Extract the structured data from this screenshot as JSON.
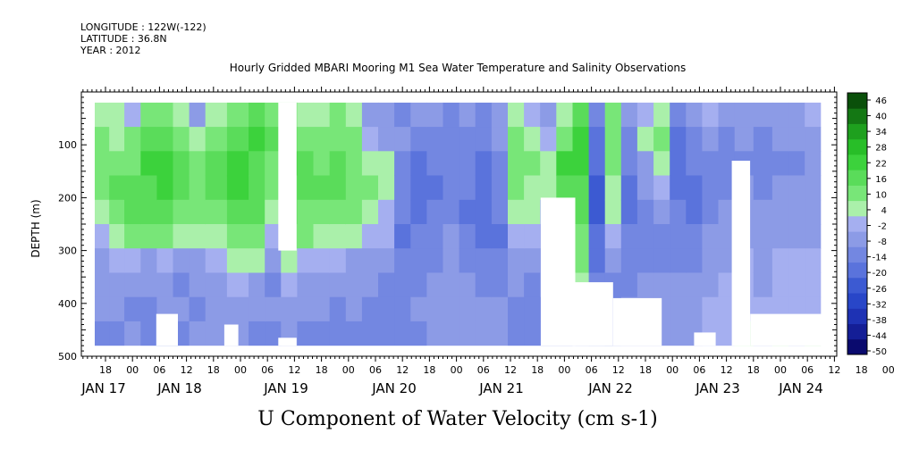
{
  "header": {
    "longitude": "LONGITUDE : 122W(-122)",
    "latitude": "LATITUDE : 36.8N",
    "year": "YEAR : 2012"
  },
  "chart_data": {
    "type": "heatmap",
    "title": "Hourly Gridded MBARI Mooring M1 Sea Water Temperature and Salinity Observations",
    "xlabel": "U Component of Water Velocity (cm s-1)",
    "ylabel": "DEPTH (m)",
    "ylim": [
      500,
      0
    ],
    "y_ticks": [
      100,
      200,
      300,
      400,
      500
    ],
    "x_hour_ticks": [
      "18",
      "00",
      "06",
      "12",
      "18",
      "00",
      "06",
      "12",
      "18",
      "00",
      "06",
      "12",
      "18",
      "00",
      "06",
      "12",
      "18",
      "00",
      "06",
      "12",
      "18",
      "00",
      "06",
      "12",
      "18",
      "00",
      "06",
      "12",
      "18",
      "00",
      "06",
      "12"
    ],
    "x_day_labels": [
      "JAN 17",
      "JAN 18",
      "JAN 19",
      "JAN 20",
      "JAN 21",
      "JAN 22",
      "JAN 23",
      "JAN 24"
    ],
    "colorbar": {
      "levels": [
        -50,
        -44,
        -38,
        -32,
        -26,
        -20,
        -14,
        -8,
        -2,
        4,
        10,
        16,
        22,
        28,
        34,
        40,
        46
      ],
      "tick_labels": [
        "46",
        "40",
        "34",
        "28",
        "22",
        "16",
        "10",
        "4",
        "-2",
        "-8",
        "-14",
        "-20",
        "-26",
        "-32",
        "-38",
        "-44",
        "-50"
      ],
      "colors_low_to_high": [
        "#0a0a6e",
        "#141e96",
        "#1e32b4",
        "#2846c8",
        "#3c5ad2",
        "#5a73dc",
        "#7387e1",
        "#8c9be6",
        "#a5aff0",
        "#aaf0aa",
        "#78e678",
        "#5adc5a",
        "#3cd23c",
        "#28be28",
        "#1ea01e",
        "#147814",
        "#0a500a"
      ]
    },
    "depth_top": 20,
    "depth_bottom": 480,
    "columns": [
      {
        "day": 0.72,
        "top": 20,
        "bottom": 480,
        "u": [
          6,
          10,
          14,
          12,
          6,
          0,
          -4,
          -8,
          -6,
          -10
        ]
      },
      {
        "day": 0.85,
        "top": 20,
        "bottom": 480,
        "u": [
          4,
          8,
          12,
          16,
          14,
          8,
          2,
          -6,
          -8,
          -12
        ]
      },
      {
        "day": 1.0,
        "top": 20,
        "bottom": 480,
        "u": [
          2,
          10,
          14,
          18,
          16,
          10,
          -2,
          -8,
          -10,
          -8
        ]
      },
      {
        "day": 1.15,
        "top": 20,
        "bottom": 480,
        "u": [
          10,
          16,
          22,
          20,
          18,
          14,
          -4,
          -6,
          -10,
          -12
        ]
      },
      {
        "day": 1.3,
        "top": 20,
        "bottom": 480,
        "u": [
          14,
          20,
          24,
          22,
          18,
          10,
          -2,
          -8,
          -6,
          -10
        ]
      },
      {
        "day": 1.45,
        "top": 20,
        "bottom": 480,
        "u": [
          8,
          14,
          18,
          16,
          12,
          4,
          -6,
          -10,
          -8,
          -14
        ]
      },
      {
        "day": 1.6,
        "top": 20,
        "bottom": 480,
        "u": [
          -4,
          6,
          10,
          14,
          10,
          6,
          -4,
          -8,
          -10,
          -8
        ]
      },
      {
        "day": 1.75,
        "top": 20,
        "bottom": 480,
        "u": [
          6,
          12,
          16,
          18,
          14,
          8,
          -2,
          -4,
          -6,
          -8
        ]
      },
      {
        "day": 2.0,
        "top": 20,
        "bottom": 480,
        "u": [
          12,
          18,
          22,
          24,
          20,
          14,
          6,
          -2,
          -4,
          -8
        ]
      },
      {
        "day": 2.15,
        "top": 20,
        "bottom": 480,
        "u": [
          16,
          22,
          20,
          18,
          16,
          10,
          4,
          -4,
          -6,
          -10
        ]
      },
      {
        "day": 2.3,
        "top": 20,
        "bottom": 480,
        "u": [
          10,
          16,
          14,
          12,
          8,
          2,
          -6,
          -10,
          -8,
          -12
        ]
      },
      {
        "day": 2.45,
        "top": 20,
        "bottom": 480,
        "u": [
          14,
          18,
          22,
          20,
          16,
          12,
          4,
          -2,
          -6,
          -8
        ]
      },
      {
        "day": 2.6,
        "top": 20,
        "bottom": 480,
        "u": [
          8,
          12,
          16,
          18,
          14,
          10,
          2,
          -4,
          -6,
          -10
        ]
      },
      {
        "day": 2.75,
        "top": 20,
        "bottom": 480,
        "u": [
          4,
          10,
          12,
          16,
          14,
          8,
          0,
          -6,
          -8,
          -10
        ]
      },
      {
        "day": 2.9,
        "top": 20,
        "bottom": 480,
        "u": [
          10,
          14,
          18,
          16,
          12,
          6,
          -2,
          -8,
          -10,
          -12
        ]
      },
      {
        "day": 3.05,
        "top": 20,
        "bottom": 480,
        "u": [
          6,
          12,
          14,
          12,
          10,
          4,
          -4,
          -6,
          -8,
          -10
        ]
      },
      {
        "day": 3.2,
        "top": 20,
        "bottom": 480,
        "u": [
          -6,
          2,
          8,
          10,
          8,
          2,
          -4,
          -8,
          -10,
          -12
        ]
      },
      {
        "day": 3.35,
        "top": 20,
        "bottom": 480,
        "u": [
          -8,
          -4,
          4,
          6,
          2,
          -2,
          -8,
          -10,
          -12,
          -14
        ]
      },
      {
        "day": 3.5,
        "top": 20,
        "bottom": 480,
        "u": [
          -10,
          -8,
          -12,
          -10,
          -14,
          -16,
          -14,
          -10,
          -12,
          -14
        ]
      },
      {
        "day": 3.65,
        "top": 20,
        "bottom": 480,
        "u": [
          -8,
          -12,
          -16,
          -18,
          -16,
          -14,
          -12,
          -10,
          -8,
          -10
        ]
      },
      {
        "day": 3.8,
        "top": 20,
        "bottom": 480,
        "u": [
          -6,
          -10,
          -14,
          -16,
          -14,
          -12,
          -10,
          -8,
          -6,
          -8
        ]
      },
      {
        "day": 3.95,
        "top": 20,
        "bottom": 480,
        "u": [
          -10,
          -12,
          -14,
          -12,
          -10,
          -8,
          -6,
          -4,
          -6,
          -8
        ]
      },
      {
        "day": 4.1,
        "top": 20,
        "bottom": 480,
        "u": [
          -8,
          -10,
          -12,
          -14,
          -16,
          -12,
          -10,
          -8,
          -6,
          -4
        ]
      },
      {
        "day": 4.25,
        "top": 20,
        "bottom": 480,
        "u": [
          -10,
          -14,
          -16,
          -18,
          -20,
          -16,
          -12,
          -10,
          -8,
          -6
        ]
      },
      {
        "day": 4.4,
        "top": 20,
        "bottom": 480,
        "u": [
          -6,
          -8,
          -10,
          -12,
          -14,
          -18,
          -14,
          -10,
          -8,
          -6
        ]
      },
      {
        "day": 4.55,
        "top": 20,
        "bottom": 480,
        "u": [
          4,
          10,
          14,
          12,
          8,
          2,
          -4,
          -8,
          -10,
          -12
        ]
      },
      {
        "day": 4.7,
        "top": 20,
        "bottom": 480,
        "u": [
          2,
          6,
          10,
          8,
          4,
          0,
          -6,
          -10,
          -12,
          -14
        ]
      },
      {
        "day": 4.85,
        "top": 20,
        "bottom": 480,
        "u": [
          -4,
          2,
          6,
          4,
          -2,
          -8,
          -12,
          -14,
          -16,
          -18
        ]
      },
      {
        "day": 5.0,
        "top": 20,
        "bottom": 480,
        "u": [
          6,
          14,
          22,
          16,
          10,
          2,
          -6,
          -10,
          -12,
          -16
        ]
      },
      {
        "day": 5.15,
        "top": 20,
        "bottom": 480,
        "u": [
          20,
          26,
          22,
          18,
          16,
          14,
          12,
          8,
          4,
          2
        ]
      },
      {
        "day": 5.3,
        "top": 20,
        "bottom": 480,
        "u": [
          -12,
          -16,
          -20,
          -22,
          -24,
          -20,
          -16,
          -12,
          -10,
          -8
        ]
      },
      {
        "day": 5.45,
        "top": 20,
        "bottom": 480,
        "u": [
          10,
          14,
          12,
          8,
          4,
          -2,
          -8,
          -12,
          -14,
          -10
        ]
      },
      {
        "day": 5.6,
        "top": 20,
        "bottom": 480,
        "u": [
          -6,
          -10,
          -14,
          -16,
          -18,
          -14,
          -12,
          -10,
          -8,
          -6
        ]
      },
      {
        "day": 5.75,
        "top": 20,
        "bottom": 480,
        "u": [
          2,
          6,
          -4,
          -8,
          -10,
          -12,
          -10,
          -8,
          -6,
          -4
        ]
      },
      {
        "day": 5.9,
        "top": 20,
        "bottom": 480,
        "u": [
          8,
          12,
          4,
          -2,
          -6,
          -10,
          -12,
          -8,
          -6,
          -4
        ]
      },
      {
        "day": 6.05,
        "top": 20,
        "bottom": 480,
        "u": [
          -12,
          -16,
          -20,
          -18,
          -14,
          -12,
          -10,
          -8,
          -6,
          -4
        ]
      },
      {
        "day": 6.2,
        "top": 20,
        "bottom": 480,
        "u": [
          -6,
          -10,
          -14,
          -18,
          -16,
          -12,
          -10,
          -8,
          -6,
          -4
        ]
      },
      {
        "day": 6.35,
        "top": 20,
        "bottom": 480,
        "u": [
          -2,
          -6,
          -10,
          -14,
          -12,
          -8,
          -6,
          -4,
          -2,
          2
        ]
      },
      {
        "day": 6.5,
        "top": 20,
        "bottom": 480,
        "u": [
          -8,
          -10,
          -12,
          -10,
          -8,
          -6,
          -4,
          -2,
          0,
          2
        ]
      },
      {
        "day": 6.65,
        "top": 20,
        "bottom": 480,
        "u": [
          -6,
          -8,
          -10,
          -8,
          -6,
          -4,
          -2,
          0,
          2,
          4
        ]
      },
      {
        "day": 6.85,
        "top": 20,
        "bottom": 480,
        "u": [
          -8,
          -10,
          -12,
          -10,
          -8,
          -6,
          -6,
          -4,
          -2,
          0
        ]
      },
      {
        "day": 7.0,
        "top": 20,
        "bottom": 480,
        "u": [
          -4,
          -8,
          -10,
          -8,
          -6,
          -4,
          -2,
          0,
          2,
          4
        ]
      },
      {
        "day": 7.15,
        "top": 20,
        "bottom": 480,
        "u": [
          -6,
          -8,
          -10,
          -8,
          -6,
          -4,
          -2,
          -2,
          0,
          2
        ]
      },
      {
        "day": 7.3,
        "top": 20,
        "bottom": 480,
        "u": [
          2,
          -4,
          -6,
          -8,
          -6,
          -4,
          -2,
          0,
          2,
          4
        ]
      }
    ],
    "gaps": [
      {
        "day0": 2.35,
        "day1": 2.52,
        "top": 20,
        "bottom": 300
      },
      {
        "day0": 2.35,
        "day1": 2.52,
        "top": 465,
        "bottom": 480
      },
      {
        "day0": 4.78,
        "day1": 5.1,
        "top": 200,
        "bottom": 480
      },
      {
        "day0": 5.1,
        "day1": 5.45,
        "top": 360,
        "bottom": 480
      },
      {
        "day0": 6.55,
        "day1": 6.72,
        "top": 130,
        "bottom": 480
      },
      {
        "day0": 6.72,
        "day1": 7.42,
        "top": 420,
        "bottom": 480
      },
      {
        "day0": 1.22,
        "day1": 1.42,
        "top": 420,
        "bottom": 480
      },
      {
        "day0": 1.85,
        "day1": 1.98,
        "top": 440,
        "bottom": 480
      },
      {
        "day0": 5.45,
        "day1": 5.9,
        "top": 390,
        "bottom": 480
      },
      {
        "day0": 6.2,
        "day1": 6.4,
        "top": 455,
        "bottom": 480
      }
    ]
  }
}
